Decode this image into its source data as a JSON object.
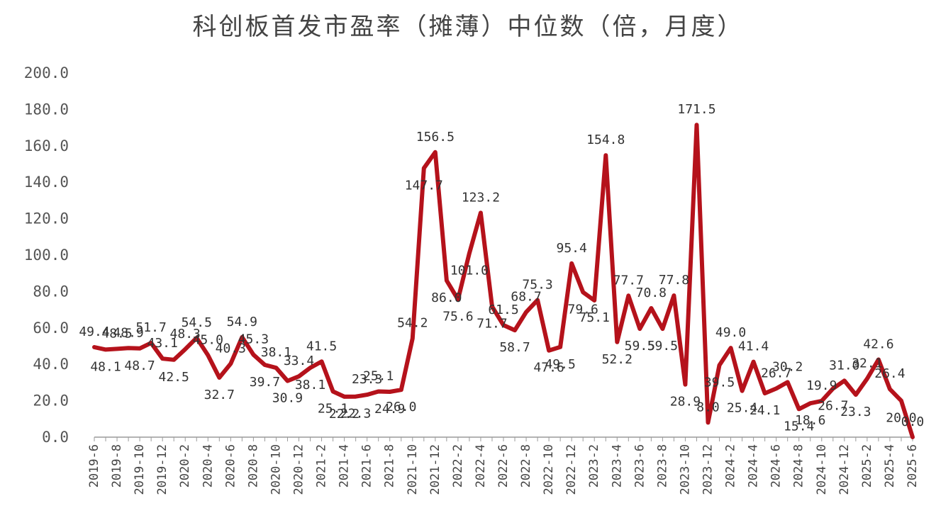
{
  "chart_data": {
    "type": "line",
    "title": "科创板首发市盈率（摊薄）中位数（倍，月度）",
    "xlabel": "",
    "ylabel": "",
    "ylim": [
      0,
      200
    ],
    "yticks": [
      "0.0",
      "20.0",
      "40.0",
      "60.0",
      "80.0",
      "100.0",
      "120.0",
      "140.0",
      "160.0",
      "180.0",
      "200.0"
    ],
    "grid": false,
    "legend": "none",
    "line_color": "#b5121b",
    "x": [
      "2019-6",
      "2019-7",
      "2019-8",
      "2019-9",
      "2019-10",
      "2019-11",
      "2019-12",
      "2020-1",
      "2020-2",
      "2020-3",
      "2020-4",
      "2020-5",
      "2020-6",
      "2020-7",
      "2020-8",
      "2020-9",
      "2020-10",
      "2020-11",
      "2020-12",
      "2021-1",
      "2021-2",
      "2021-3",
      "2021-4",
      "2021-5",
      "2021-6",
      "2021-7",
      "2021-8",
      "2021-9",
      "2021-10",
      "2021-11",
      "2021-12",
      "2022-1",
      "2022-2",
      "2022-3",
      "2022-4",
      "2022-5",
      "2022-6",
      "2022-7",
      "2022-8",
      "2022-9",
      "2022-10",
      "2022-11",
      "2022-12",
      "2023-1",
      "2023-2",
      "2023-3",
      "2023-4",
      "2023-5",
      "2023-6",
      "2023-7",
      "2023-8",
      "2023-9",
      "2023-10",
      "2023-11",
      "2023-12",
      "2024-1",
      "2024-2",
      "2024-3",
      "2024-4",
      "2024-5",
      "2024-6",
      "2024-7",
      "2024-8",
      "2024-9",
      "2024-10",
      "2024-11",
      "2024-12",
      "2025-1",
      "2025-2",
      "2025-3",
      "2025-4",
      "2025-5",
      "2025-6"
    ],
    "xtick_labels": [
      "2019-6",
      "2019-8",
      "2019-10",
      "2019-12",
      "2020-2",
      "2020-4",
      "2020-6",
      "2020-8",
      "2020-10",
      "2020-12",
      "2021-2",
      "2021-4",
      "2021-6",
      "2021-8",
      "2021-10",
      "2021-12",
      "2022-2",
      "2022-4",
      "2022-6",
      "2022-8",
      "2022-10",
      "2022-12",
      "2023-2",
      "2023-4",
      "2023-6",
      "2023-8",
      "2023-10",
      "2023-12",
      "2024-2",
      "2024-4",
      "2024-6",
      "2024-8",
      "2024-10",
      "2024-12",
      "2025-2",
      "2025-4",
      "2025-6"
    ],
    "values": [
      49.4,
      48.1,
      48.5,
      48.9,
      48.7,
      51.7,
      43.1,
      42.5,
      48.3,
      54.5,
      45.0,
      32.7,
      40.3,
      54.9,
      45.3,
      39.7,
      38.1,
      30.9,
      33.4,
      38.1,
      41.5,
      25.1,
      22.2,
      22.3,
      23.3,
      25.1,
      24.9,
      26.0,
      54.2,
      147.7,
      156.5,
      86.0,
      75.6,
      101.0,
      123.2,
      71.7,
      61.5,
      58.7,
      68.7,
      75.3,
      47.6,
      49.5,
      95.4,
      79.6,
      75.1,
      154.8,
      52.2,
      77.7,
      59.5,
      70.8,
      59.5,
      77.8,
      28.9,
      171.5,
      8.0,
      39.5,
      49.0,
      25.4,
      41.4,
      24.1,
      26.7,
      30.2,
      15.4,
      18.6,
      19.9,
      26.7,
      31.0,
      23.3,
      32.1,
      42.6,
      26.4,
      20.0,
      0.0
    ],
    "data_labels": [
      "49.4",
      "48.1",
      "48.5",
      "48.9",
      "48.7",
      "51.7",
      "43.1",
      "42.5",
      "48.3",
      "54.5",
      "45.0",
      "32.7",
      "40.3",
      "54.9",
      "45.3",
      "39.7",
      "38.1",
      "30.9",
      "33.4",
      "38.1",
      "41.5",
      "25.1",
      "22.2",
      "22.3",
      "23.3",
      "25.1",
      "24.9",
      "26.0",
      "54.2",
      "147.7",
      "156.5",
      "86.0",
      "75.6",
      "101.0",
      "123.2",
      "71.7",
      "61.5",
      "58.7",
      "68.7",
      "75.3",
      "47.6",
      "49.5",
      "95.4",
      "79.6",
      "75.1",
      "154.8",
      "52.2",
      "77.7",
      "59.5",
      "70.8",
      "59.5",
      "77.8",
      "28.9",
      "171.5",
      "8.0",
      "39.5",
      "49.0",
      "25.4",
      "41.4",
      "24.1",
      "26.7",
      "30.2",
      "15.4",
      "18.6",
      "19.9",
      "26.7",
      "31.0",
      "23.3",
      "32.1",
      "42.6",
      "26.4",
      "20.0",
      "0.0"
    ]
  }
}
